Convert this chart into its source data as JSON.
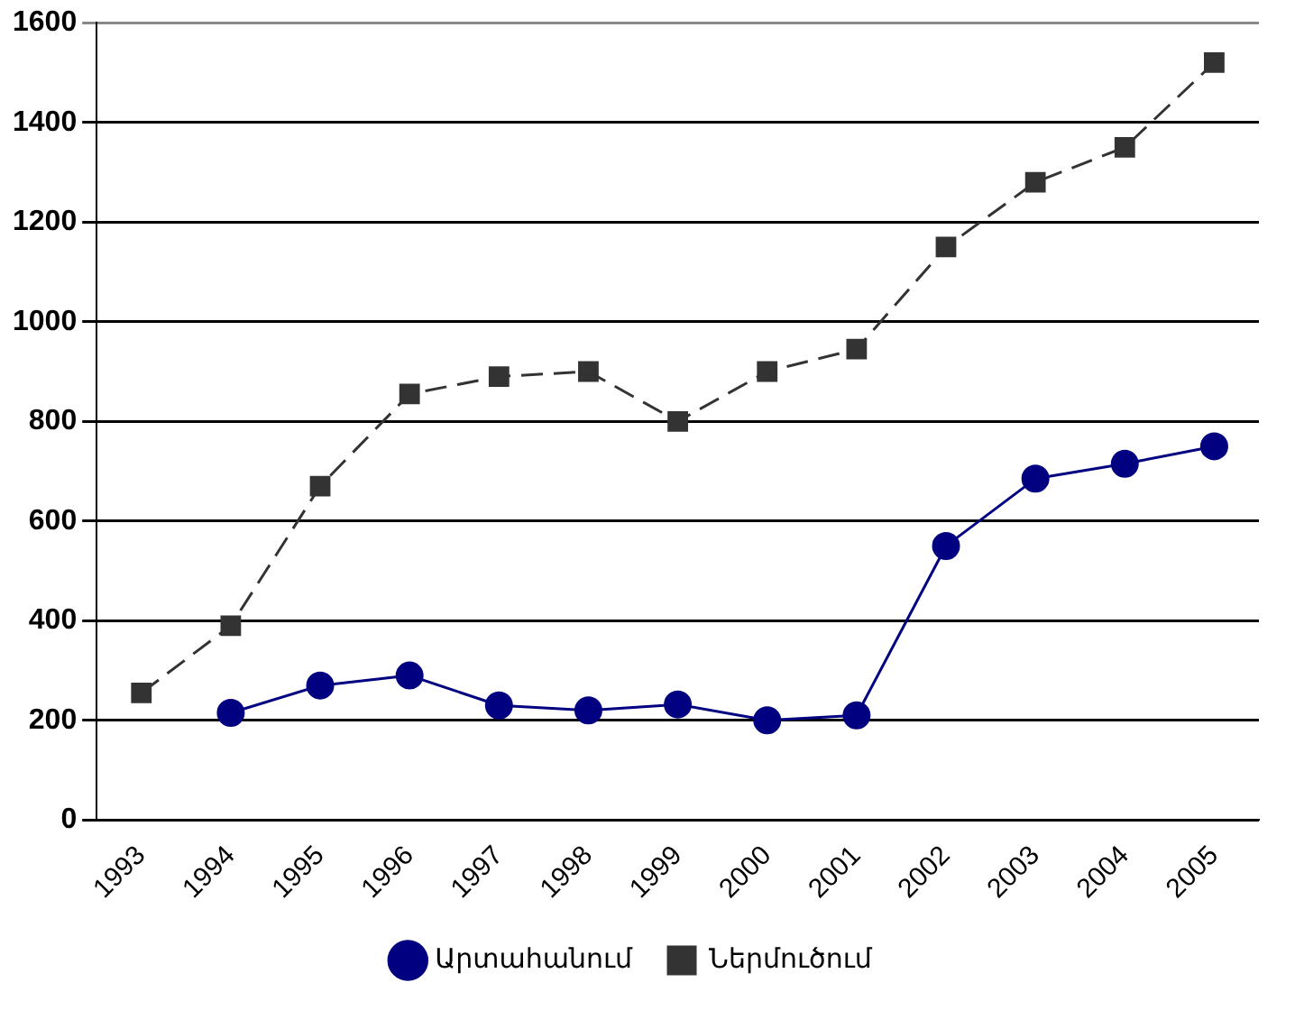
{
  "chart_data": {
    "type": "line",
    "categories": [
      "1993",
      "1994",
      "1995",
      "1996",
      "1997",
      "1998",
      "1999",
      "2000",
      "2001",
      "2002",
      "2003",
      "2004",
      "2005"
    ],
    "series": [
      {
        "name": "Արտահանում",
        "color": "#000080",
        "marker": "circle",
        "line_style": "solid",
        "values": [
          null,
          215,
          270,
          290,
          230,
          220,
          232,
          200,
          210,
          550,
          685,
          715,
          750
        ]
      },
      {
        "name": "Ներմուծում",
        "color": "#333333",
        "marker": "square",
        "line_style": "dashed",
        "values": [
          255,
          390,
          670,
          855,
          890,
          900,
          800,
          900,
          945,
          1150,
          1280,
          1350,
          1520
        ]
      }
    ],
    "ylim": [
      0,
      1600
    ],
    "yticks": [
      0,
      200,
      400,
      600,
      800,
      1000,
      1200,
      1400,
      1600
    ],
    "grid": "y",
    "legend": "bottom"
  }
}
